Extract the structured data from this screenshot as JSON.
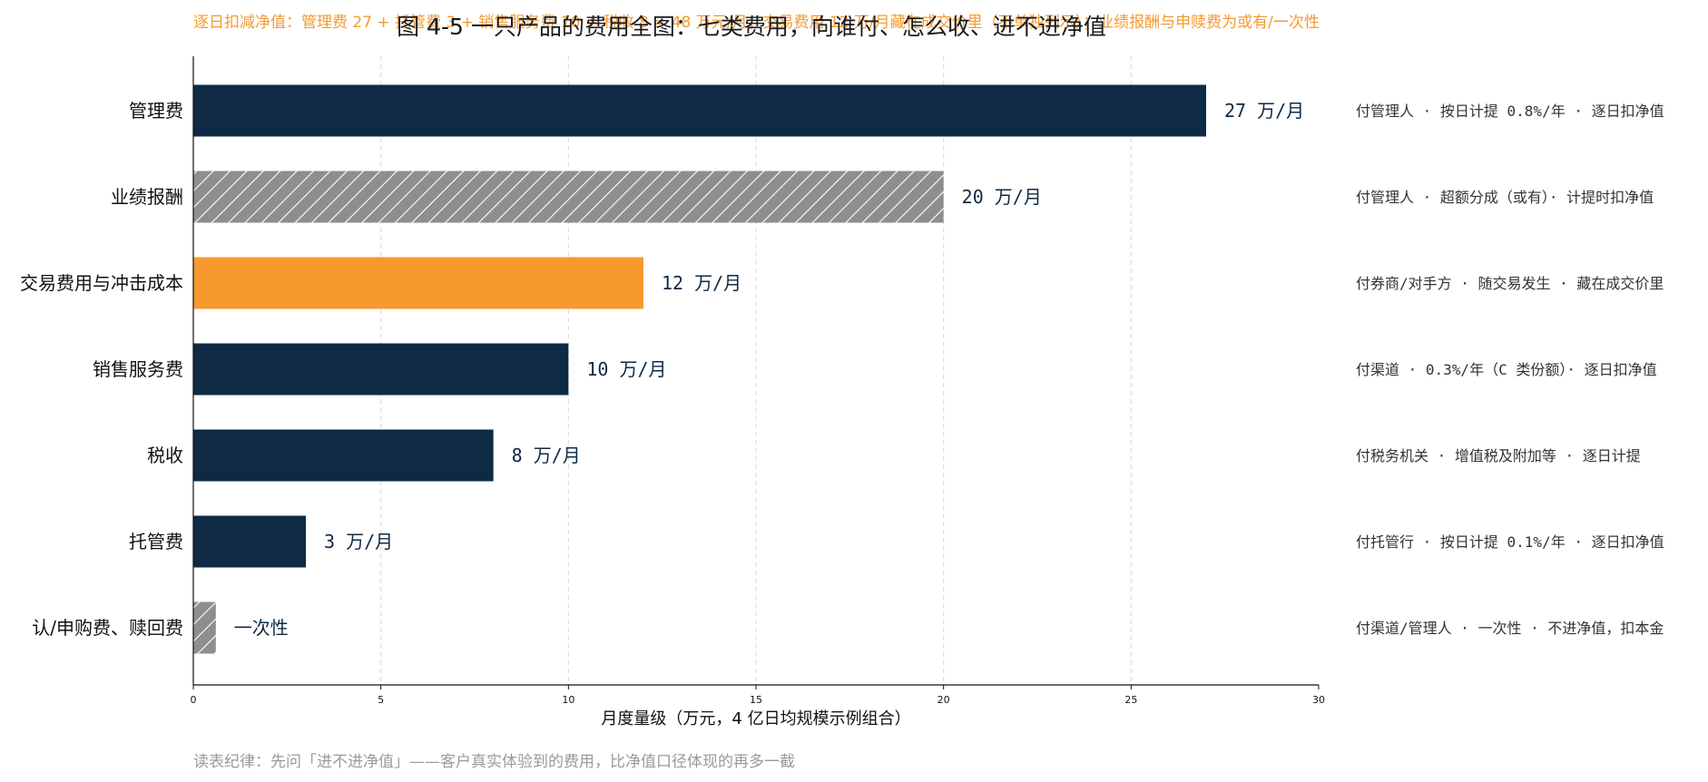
{
  "chart_data": {
    "type": "bar",
    "orientation": "horizontal",
    "title": "图 4-5 一只产品的费用全图：七类费用，向谁付、怎么收、进不进净值",
    "subtitle": "逐日扣减净值：管理费 27 + 托管费 3 + 销售服务费 10 + 税收 8 = 48 万元/月；交易费用 12 万/月藏在成交价里（不单独列示）；业绩报酬与申赎费为或有/一次性",
    "xlabel": "月度量级（万元，4 亿日均规模示例组合）",
    "xlim": [
      0,
      30
    ],
    "xticks": [
      "0",
      "5",
      "10",
      "15",
      "20",
      "25",
      "30"
    ],
    "grid": "vertical-dashed",
    "footnote": "读表纪律：先问「进不进净值」——客户真实体验到的费用，比净值口径体现的再多一截",
    "colors": {
      "navy": "#0f2a44",
      "orange": "#f7992f",
      "gray": "#8e8e8e"
    },
    "categories": [
      "管理费",
      "业绩报酬",
      "交易费用与冲击成本",
      "销售服务费",
      "税收",
      "托管费",
      "认/申购费、赎回费"
    ],
    "values": [
      27,
      20,
      12,
      10,
      8,
      3,
      0.6
    ],
    "styles": [
      "navy",
      "gray-hatched",
      "orange",
      "navy",
      "navy",
      "navy",
      "gray-hatched"
    ],
    "value_labels": [
      "27 万/月",
      "20 万/月",
      "12 万/月",
      "10 万/月",
      "8 万/月",
      "3 万/月",
      "一次性"
    ],
    "notes": [
      "付管理人 · 按日计提 0.8%/年 · 逐日扣净值",
      "付管理人 · 超额分成（或有）· 计提时扣净值",
      "付券商/对手方 · 随交易发生 · 藏在成交价里",
      "付渠道 · 0.3%/年（C 类份额）· 逐日扣净值",
      "付税务机关 · 增值税及附加等 · 逐日计提",
      "付托管行 · 按日计提 0.1%/年 · 逐日扣净值",
      "付渠道/管理人 · 一次性 · 不进净值，扣本金"
    ]
  }
}
